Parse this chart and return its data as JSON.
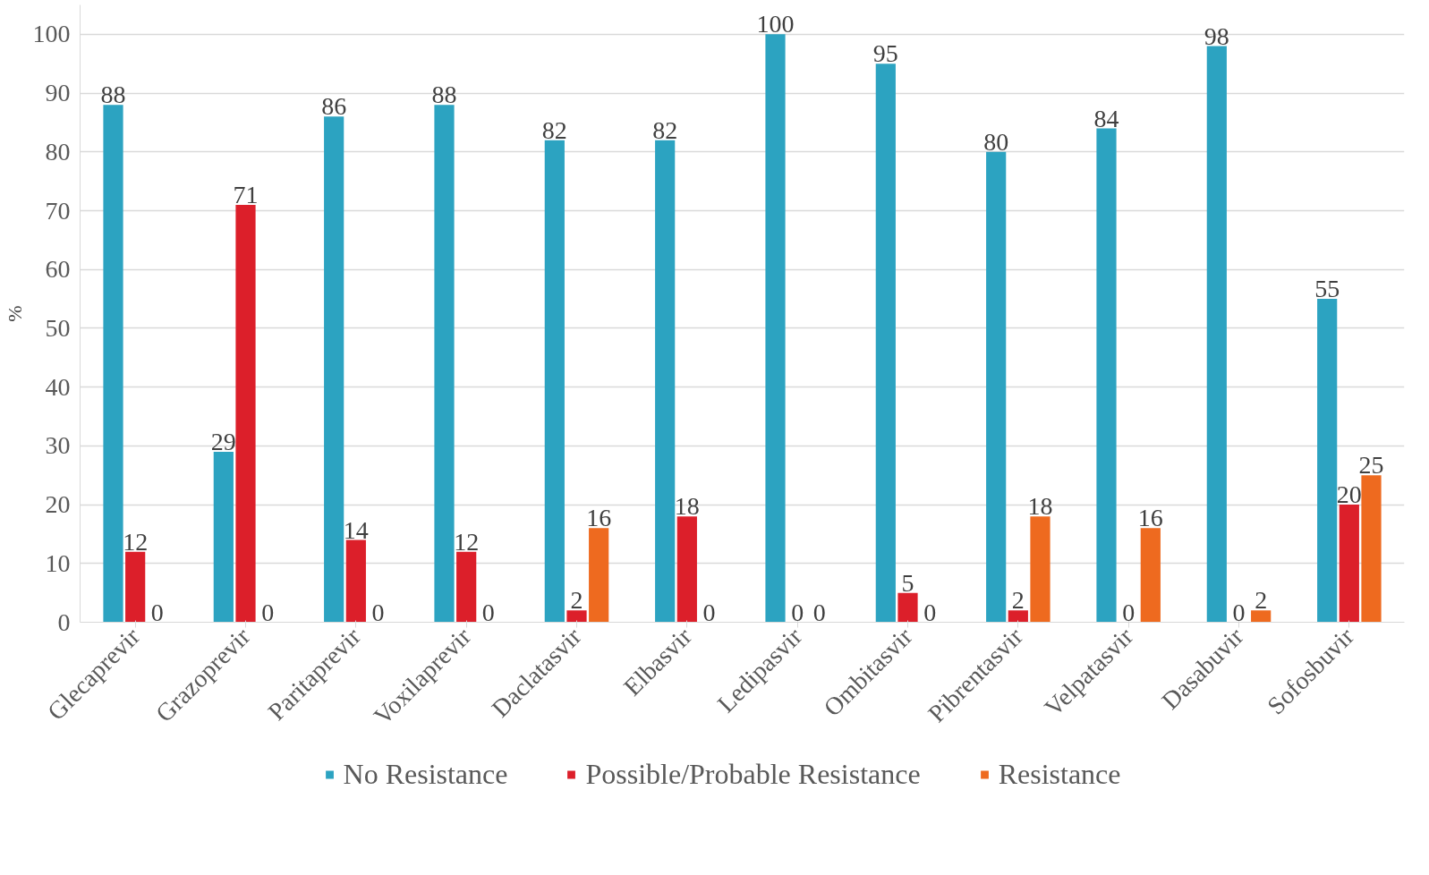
{
  "chart_data": {
    "type": "bar",
    "ylabel": "%",
    "categories": [
      "Glecaprevir",
      "Grazoprevir",
      "Paritaprevir",
      "Voxilaprevir",
      "Daclatasvir",
      "Elbasvir",
      "Ledipasvir",
      "Ombitasvir",
      "Pibrentasvir",
      "Velpatasvir",
      "Dasabuvir",
      "Sofosbuvir"
    ],
    "series": [
      {
        "name": "No Resistance",
        "color": "#2ca3c1",
        "values": [
          88,
          29,
          86,
          88,
          82,
          82,
          100,
          95,
          80,
          84,
          98,
          55
        ]
      },
      {
        "name": "Possible/Probable Resistance",
        "color": "#dc1f2a",
        "values": [
          12,
          71,
          14,
          12,
          2,
          18,
          0,
          5,
          2,
          0,
          0,
          20
        ]
      },
      {
        "name": "Resistance",
        "color": "#ee6a1f",
        "values": [
          0,
          0,
          0,
          0,
          16,
          0,
          0,
          0,
          18,
          16,
          2,
          25
        ]
      }
    ],
    "ylim": [
      0,
      105
    ],
    "yticks": [
      0,
      10,
      20,
      30,
      40,
      50,
      60,
      70,
      80,
      90,
      100
    ],
    "grid": "y",
    "legend": "bottom",
    "data_labels": true
  }
}
